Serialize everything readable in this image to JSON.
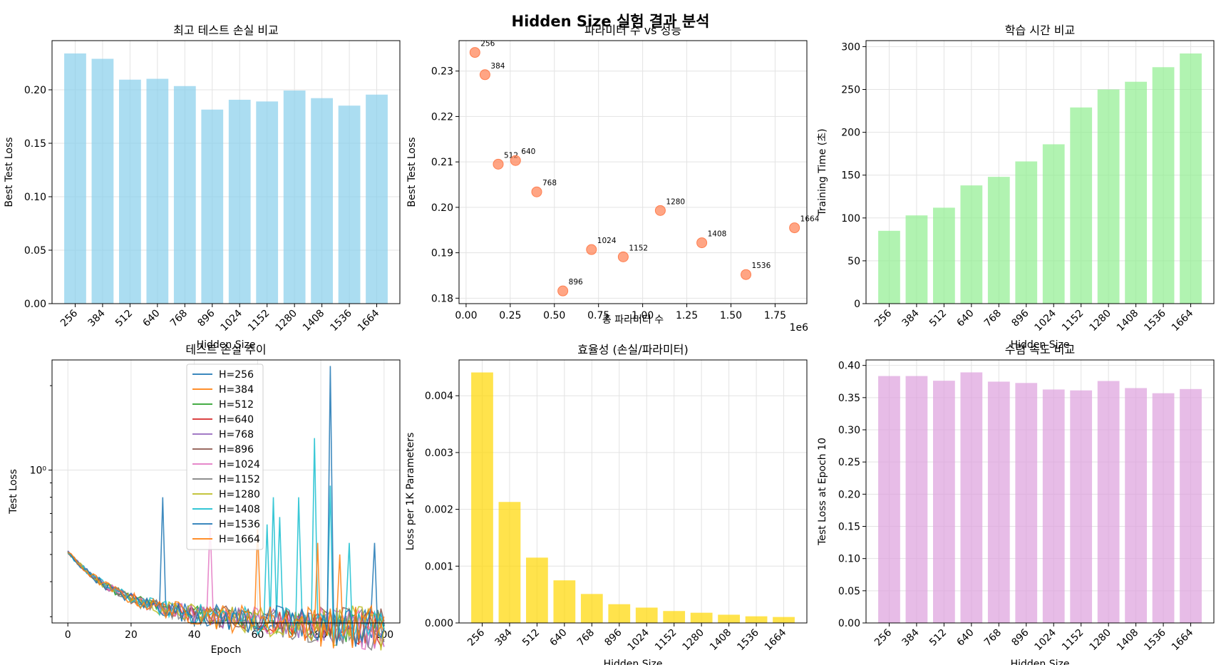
{
  "suptitle": "Hidden Size 실험 결과 분석",
  "chart_data": [
    {
      "type": "bar",
      "title": "최고 테스트 손실 비교",
      "xlabel": "Hidden Size",
      "ylabel": "Best Test Loss",
      "categories": [
        "256",
        "384",
        "512",
        "640",
        "768",
        "896",
        "1024",
        "1152",
        "1280",
        "1408",
        "1536",
        "1664"
      ],
      "values": [
        0.234,
        0.229,
        0.2095,
        0.2103,
        0.2035,
        0.1815,
        0.1907,
        0.1891,
        0.1993,
        0.1922,
        0.1852,
        0.1955
      ],
      "ylim": [
        0,
        0.246
      ],
      "yticks": [
        0.0,
        0.05,
        0.1,
        0.15,
        0.2
      ],
      "ytick_labels": [
        "0.00",
        "0.05",
        "0.10",
        "0.15",
        "0.20"
      ],
      "color": "#87CEEB",
      "grid": true
    },
    {
      "type": "scatter",
      "title": "파라미터 수 vs 성능",
      "xlabel": "총 파라미터 수",
      "ylabel": "Best Test Loss",
      "x_offset_label": "1e6",
      "points": [
        {
          "label": "256",
          "x": 0.05,
          "y": 0.2341
        },
        {
          "label": "384",
          "x": 0.107,
          "y": 0.2292
        },
        {
          "label": "512",
          "x": 0.182,
          "y": 0.2095
        },
        {
          "label": "640",
          "x": 0.28,
          "y": 0.2103
        },
        {
          "label": "768",
          "x": 0.4,
          "y": 0.2034
        },
        {
          "label": "896",
          "x": 0.548,
          "y": 0.1816
        },
        {
          "label": "1024",
          "x": 0.71,
          "y": 0.1907
        },
        {
          "label": "1152",
          "x": 0.89,
          "y": 0.1891
        },
        {
          "label": "1280",
          "x": 1.1,
          "y": 0.1993
        },
        {
          "label": "1408",
          "x": 1.335,
          "y": 0.1922
        },
        {
          "label": "1536",
          "x": 1.585,
          "y": 0.1852
        },
        {
          "label": "1664",
          "x": 1.86,
          "y": 0.1955
        }
      ],
      "xlim": [
        -0.04,
        1.93
      ],
      "ylim": [
        0.1788,
        0.2367
      ],
      "xticks": [
        0.0,
        0.25,
        0.5,
        0.75,
        1.0,
        1.25,
        1.5,
        1.75
      ],
      "xtick_labels": [
        "0.00",
        "0.25",
        "0.50",
        "0.75",
        "1.00",
        "1.25",
        "1.50",
        "1.75"
      ],
      "yticks": [
        0.18,
        0.19,
        0.2,
        0.21,
        0.22,
        0.23
      ],
      "ytick_labels": [
        "0.18",
        "0.19",
        "0.20",
        "0.21",
        "0.22",
        "0.23"
      ],
      "color": "#FF7F50",
      "grid": true
    },
    {
      "type": "bar",
      "title": "학습 시간 비교",
      "xlabel": "Hidden Size",
      "ylabel": "Training Time (초)",
      "categories": [
        "256",
        "384",
        "512",
        "640",
        "768",
        "896",
        "1024",
        "1152",
        "1280",
        "1408",
        "1536",
        "1664"
      ],
      "values": [
        85,
        103,
        112,
        138,
        148,
        166,
        186,
        229,
        250,
        259,
        276,
        292
      ],
      "ylim": [
        0,
        307
      ],
      "yticks": [
        0,
        50,
        100,
        150,
        200,
        250,
        300
      ],
      "ytick_labels": [
        "0",
        "50",
        "100",
        "150",
        "200",
        "250",
        "300"
      ],
      "color": "#90EE90",
      "grid": true
    },
    {
      "type": "line",
      "title": "테스트 손실 추이",
      "xlabel": "Epoch",
      "ylabel": "Test Loss",
      "log_y": true,
      "xlim": [
        -5,
        105
      ],
      "ylim": [
        0.285,
        2.47
      ],
      "xticks": [
        0,
        20,
        40,
        60,
        80,
        100
      ],
      "xtick_labels": [
        "0",
        "20",
        "40",
        "60",
        "80",
        "100"
      ],
      "yticks": [
        1.0
      ],
      "ytick_labels": [
        "10⁰"
      ],
      "legend_position": "upper-center",
      "series": [
        {
          "name": "H=256",
          "color": "#1f77b4",
          "spikes": [
            [
              30,
              0.8
            ]
          ]
        },
        {
          "name": "H=384",
          "color": "#ff7f0e",
          "spikes": []
        },
        {
          "name": "H=512",
          "color": "#2ca02c",
          "spikes": []
        },
        {
          "name": "H=640",
          "color": "#d62728",
          "spikes": []
        },
        {
          "name": "H=768",
          "color": "#9467bd",
          "spikes": []
        },
        {
          "name": "H=896",
          "color": "#8c564b",
          "spikes": []
        },
        {
          "name": "H=1024",
          "color": "#e377c2",
          "spikes": [
            [
              45,
              0.65
            ]
          ]
        },
        {
          "name": "H=1152",
          "color": "#7f7f7f",
          "spikes": []
        },
        {
          "name": "H=1280",
          "color": "#bcbd22",
          "spikes": []
        },
        {
          "name": "H=1408",
          "color": "#17becf",
          "spikes": [
            [
              63,
              0.64
            ],
            [
              65,
              0.8
            ],
            [
              67,
              0.68
            ],
            [
              73,
              0.8
            ],
            [
              78,
              1.3
            ],
            [
              83,
              0.88
            ],
            [
              89,
              0.55
            ]
          ]
        },
        {
          "name": "H=1536",
          "color": "#1f77b4",
          "spikes": [
            [
              83,
              2.35
            ],
            [
              97,
              0.55
            ]
          ]
        },
        {
          "name": "H=1664",
          "color": "#ff7f0e",
          "spikes": [
            [
              60,
              0.62
            ],
            [
              79,
              0.55
            ],
            [
              86,
              0.5
            ]
          ]
        }
      ],
      "grid": true
    },
    {
      "type": "bar",
      "title": "효율성 (손실/파라미터)",
      "xlabel": "Hidden Size",
      "ylabel": "Loss per 1K Parameters",
      "categories": [
        "256",
        "384",
        "512",
        "640",
        "768",
        "896",
        "1024",
        "1152",
        "1280",
        "1408",
        "1536",
        "1664"
      ],
      "values": [
        0.00441,
        0.00213,
        0.00115,
        0.00075,
        0.00051,
        0.00033,
        0.00027,
        0.00021,
        0.00018,
        0.000145,
        0.000117,
        0.000105
      ],
      "ylim": [
        0,
        0.00463
      ],
      "yticks": [
        0,
        0.001,
        0.002,
        0.003,
        0.004
      ],
      "ytick_labels": [
        "0.000",
        "0.001",
        "0.002",
        "0.003",
        "0.004"
      ],
      "color": "#FFD700",
      "grid": true
    },
    {
      "type": "bar",
      "title": "수렴 속도 비교",
      "xlabel": "Hidden Size",
      "ylabel": "Test Loss at Epoch 10",
      "categories": [
        "256",
        "384",
        "512",
        "640",
        "768",
        "896",
        "1024",
        "1152",
        "1280",
        "1408",
        "1536",
        "1664"
      ],
      "values": [
        0.3835,
        0.3835,
        0.3762,
        0.3892,
        0.3748,
        0.3727,
        0.3626,
        0.3612,
        0.3758,
        0.3648,
        0.3568,
        0.3633
      ],
      "ylim": [
        0,
        0.4085
      ],
      "yticks": [
        0,
        0.05,
        0.1,
        0.15,
        0.2,
        0.25,
        0.3,
        0.35,
        0.4
      ],
      "ytick_labels": [
        "0.00",
        "0.05",
        "0.10",
        "0.15",
        "0.20",
        "0.25",
        "0.30",
        "0.35",
        "0.40"
      ],
      "color": "#DDA0DD",
      "grid": true
    }
  ]
}
